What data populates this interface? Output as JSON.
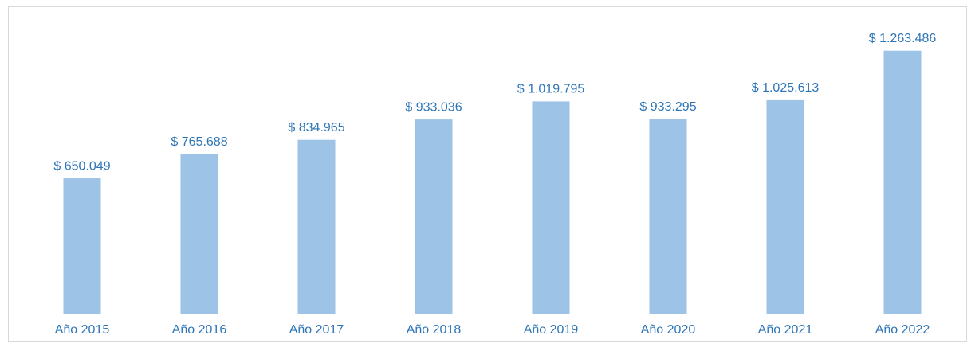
{
  "chart_data": {
    "type": "bar",
    "categories": [
      "Año 2015",
      "Año 2016",
      "Año 2017",
      "Año 2018",
      "Año 2019",
      "Año 2020",
      "Año 2021",
      "Año 2022"
    ],
    "values": [
      650049,
      765688,
      834965,
      933036,
      1019795,
      933295,
      1025613,
      1263486
    ],
    "value_labels": [
      "$ 650.049",
      "$ 765.688",
      "$ 834.965",
      "$ 933.036",
      "$ 1.019.795",
      "$ 933.295",
      "$ 1.025.613",
      "$ 1.263.486"
    ],
    "color": "#9dc3e6",
    "ylim": [
      0,
      1400000
    ]
  }
}
